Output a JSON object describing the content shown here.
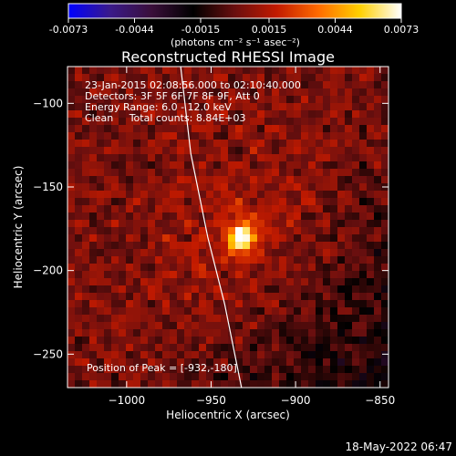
{
  "title": "Reconstructed RHESSI Image",
  "timestamp": "18-May-2022 06:47",
  "colorbar": {
    "ticks": [
      -0.0073,
      -0.0044,
      -0.0015,
      0.0015,
      0.0044,
      0.0073
    ],
    "tick_labels": [
      "-0.0073",
      "-0.0044",
      "-0.0015",
      "0.0015",
      "0.0044",
      "0.0073"
    ],
    "unit_label": "(photons cm⁻² s⁻¹ asec⁻²)",
    "colors": [
      "#0000ff",
      "#3a1a8a",
      "#3a0f3a",
      "#000000",
      "#6a0f0f",
      "#c21a00",
      "#ff6a00",
      "#ffd000",
      "#ffffff"
    ]
  },
  "annotations": {
    "line1": "23-Jan-2015 02:08:56.000 to 02:10:40.000",
    "line2": "Detectors: 3F 5F 6F 7F 8F 9F, Att 0",
    "line3": "Energy Range: 6.0 - 12.0 keV",
    "line4": "Clean     Total counts: 8.84E+03",
    "peak": "Position of Peak = [-932,-180]"
  },
  "chart_data": {
    "type": "heatmap",
    "title": "Reconstructed RHESSI Image",
    "xlabel": "Heliocentric X (arcsec)",
    "ylabel": "Heliocentric Y (arcsec)",
    "xlim": [
      -1035,
      -845
    ],
    "ylim": [
      -270,
      -78
    ],
    "x_ticks": [
      -1000,
      -950,
      -900,
      -850
    ],
    "x_tick_labels": [
      "−1000",
      "−950",
      "−900",
      "−850"
    ],
    "y_ticks": [
      -100,
      -150,
      -200,
      -250
    ],
    "y_tick_labels": [
      "−100",
      "−150",
      "−200",
      "−250"
    ],
    "peak_position": [
      -932,
      -180
    ],
    "source_sigma_arcsec": 6,
    "limb_line": [
      [
        -968,
        -78
      ],
      [
        -962,
        -130
      ],
      [
        -952,
        -180
      ],
      [
        -942,
        -220
      ],
      [
        -932,
        -270
      ]
    ],
    "grid": false
  }
}
